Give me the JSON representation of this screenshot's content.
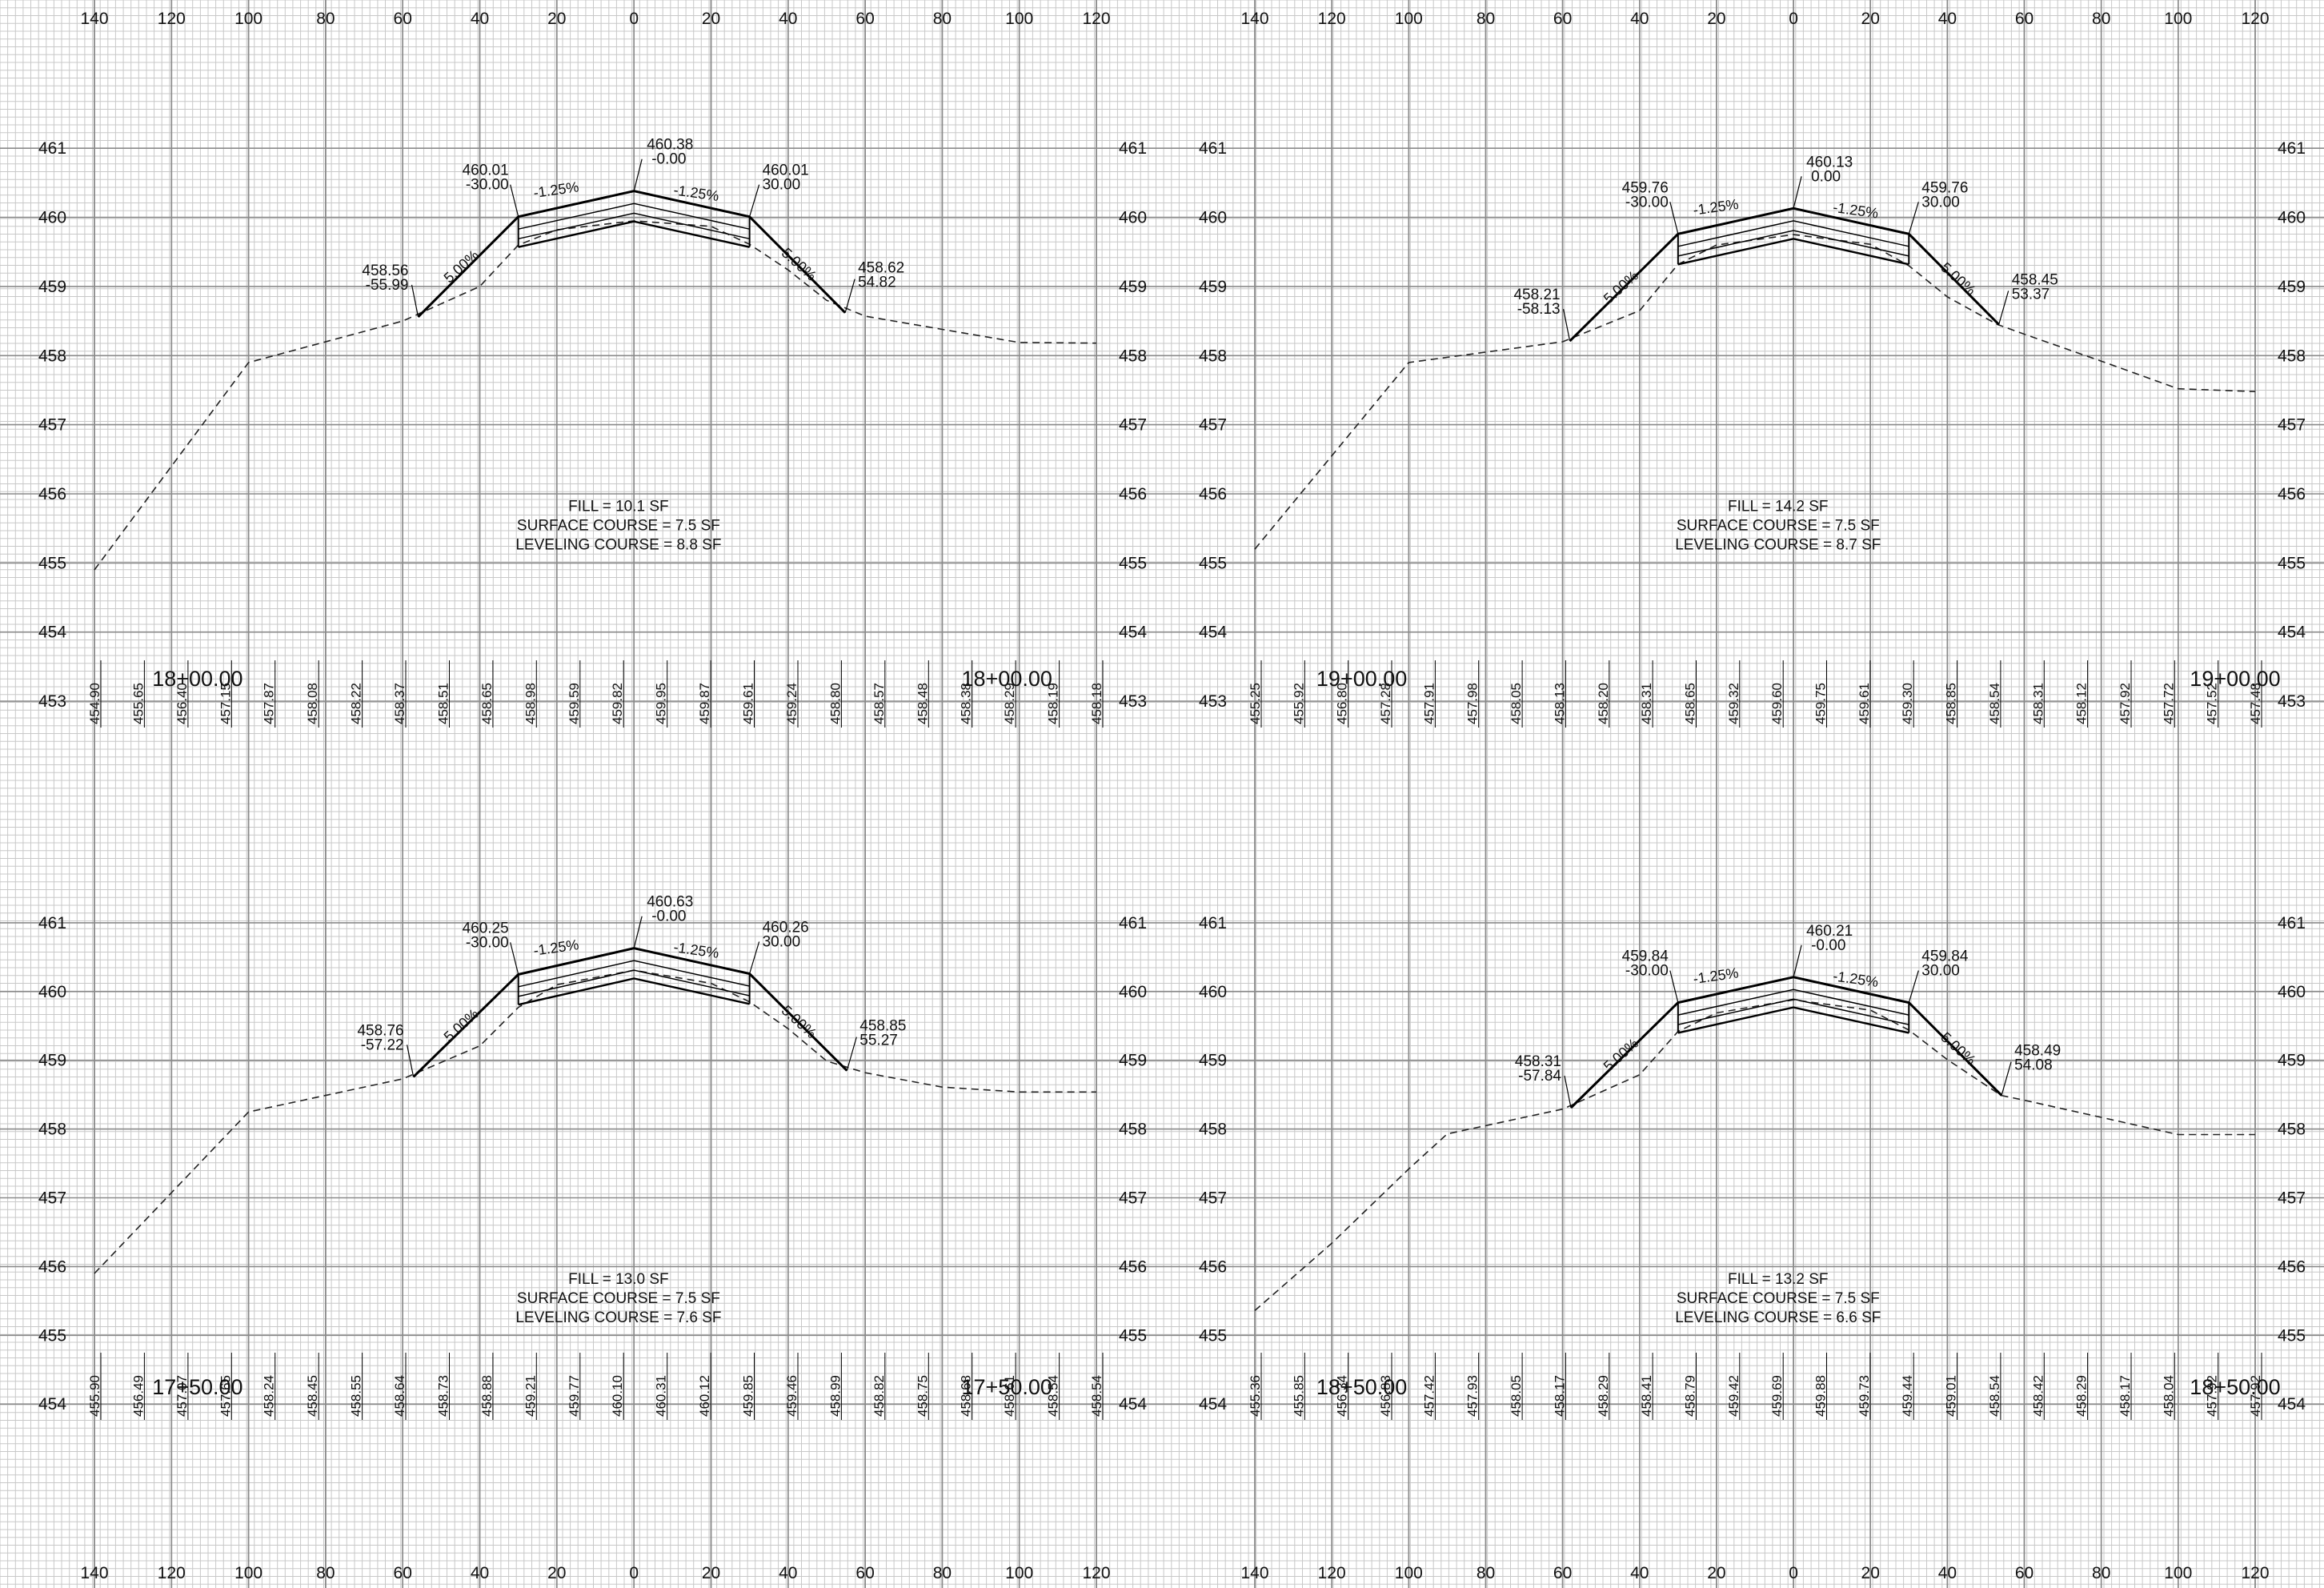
{
  "offset_labels": [
    "140",
    "120",
    "100",
    "80",
    "60",
    "40",
    "20",
    "0",
    "20",
    "40",
    "60",
    "80",
    "100",
    "120"
  ],
  "panels": [
    {
      "id": "sta-18+00",
      "station": "18+00.00",
      "elev_labels": [
        "461",
        "460",
        "459",
        "458",
        "457",
        "456",
        "455",
        "454",
        "453"
      ],
      "elev_top": 461.5,
      "elev_bottom": 452.7,
      "crown": {
        "elev": "460.38",
        "offset": "-0.00"
      },
      "left_shoulder": {
        "elev": "460.01",
        "offset": "-30.00"
      },
      "right_shoulder": {
        "elev": "460.01",
        "offset": "30.00"
      },
      "left_toe": {
        "elev": "458.56",
        "offset": "-55.99"
      },
      "right_toe": {
        "elev": "458.62",
        "offset": "54.82"
      },
      "cross_slope_left": "-1.25%",
      "cross_slope_right": "-1.25%",
      "side_slope_left": "5.00%",
      "side_slope_right": "5.00%",
      "fill": "FILL = 10.1 SF",
      "surface": "SURFACE COURSE = 7.5 SF",
      "leveling": "LEVELING COURSE = 8.8 SF",
      "existing": [
        [
          -140,
          454.9
        ],
        [
          -100,
          457.9
        ],
        [
          -60,
          458.5
        ],
        [
          -40,
          459.0
        ],
        [
          -30,
          459.6
        ],
        [
          -20,
          459.82
        ],
        [
          0,
          459.95
        ],
        [
          20,
          459.87
        ],
        [
          30,
          459.61
        ],
        [
          40,
          459.24
        ],
        [
          50,
          458.8
        ],
        [
          60,
          458.57
        ],
        [
          80,
          458.38
        ],
        [
          100,
          458.19
        ],
        [
          120,
          458.18
        ]
      ],
      "bottom_values": [
        "454.90",
        "455.65",
        "456.40",
        "457.15",
        "457.87",
        "458.08",
        "458.22",
        "458.37",
        "458.51",
        "458.65",
        "458.98",
        "459.59",
        "459.82",
        "459.95",
        "459.87",
        "459.61",
        "459.24",
        "458.80",
        "458.57",
        "458.48",
        "458.38",
        "458.29",
        "458.19",
        "458.18"
      ]
    },
    {
      "id": "sta-19+00",
      "station": "19+00.00",
      "elev_labels": [
        "461",
        "460",
        "459",
        "458",
        "457",
        "456",
        "455",
        "454",
        "453"
      ],
      "elev_top": 461.5,
      "elev_bottom": 452.7,
      "crown": {
        "elev": "460.13",
        "offset": "0.00"
      },
      "left_shoulder": {
        "elev": "459.76",
        "offset": "-30.00"
      },
      "right_shoulder": {
        "elev": "459.76",
        "offset": "30.00"
      },
      "left_toe": {
        "elev": "458.21",
        "offset": "-58.13"
      },
      "right_toe": {
        "elev": "458.45",
        "offset": "53.37"
      },
      "cross_slope_left": "-1.25%",
      "cross_slope_right": "-1.25%",
      "side_slope_left": "5.00%",
      "side_slope_right": "5.00%",
      "fill": "FILL = 14.2 SF",
      "surface": "SURFACE COURSE = 7.5 SF",
      "leveling": "LEVELING COURSE = 8.7 SF",
      "existing": [
        [
          -140,
          455.2
        ],
        [
          -100,
          457.9
        ],
        [
          -60,
          458.2
        ],
        [
          -40,
          458.65
        ],
        [
          -30,
          459.32
        ],
        [
          -20,
          459.6
        ],
        [
          0,
          459.75
        ],
        [
          20,
          459.61
        ],
        [
          30,
          459.3
        ],
        [
          40,
          458.85
        ],
        [
          53,
          458.45
        ],
        [
          60,
          458.31
        ],
        [
          80,
          457.92
        ],
        [
          100,
          457.52
        ],
        [
          120,
          457.48
        ]
      ],
      "bottom_values": [
        "455.25",
        "455.92",
        "456.80",
        "457.28",
        "457.91",
        "457.98",
        "458.05",
        "458.13",
        "458.20",
        "458.31",
        "458.65",
        "459.32",
        "459.60",
        "459.75",
        "459.61",
        "459.30",
        "458.85",
        "458.54",
        "458.31",
        "458.12",
        "457.92",
        "457.72",
        "457.52",
        "457.48"
      ]
    },
    {
      "id": "sta-17+50",
      "station": "17+50.00",
      "elev_labels": [
        "461",
        "460",
        "459",
        "458",
        "457",
        "456",
        "455",
        "454"
      ],
      "elev_top": 461.5,
      "elev_bottom": 453.7,
      "crown": {
        "elev": "460.63",
        "offset": "-0.00"
      },
      "left_shoulder": {
        "elev": "460.25",
        "offset": "-30.00"
      },
      "right_shoulder": {
        "elev": "460.26",
        "offset": "30.00"
      },
      "left_toe": {
        "elev": "458.76",
        "offset": "-57.22"
      },
      "right_toe": {
        "elev": "458.85",
        "offset": "55.27"
      },
      "cross_slope_left": "-1.25%",
      "cross_slope_right": "-1.25%",
      "side_slope_left": "5.00%",
      "side_slope_right": "5.00%",
      "fill": "FILL = 13.0 SF",
      "surface": "SURFACE COURSE = 7.5 SF",
      "leveling": "LEVELING COURSE = 7.6 SF",
      "existing": [
        [
          -140,
          455.9
        ],
        [
          -100,
          458.25
        ],
        [
          -60,
          458.73
        ],
        [
          -40,
          459.21
        ],
        [
          -30,
          459.77
        ],
        [
          -20,
          460.1
        ],
        [
          0,
          460.31
        ],
        [
          20,
          460.12
        ],
        [
          30,
          459.85
        ],
        [
          40,
          459.46
        ],
        [
          50,
          458.99
        ],
        [
          60,
          458.82
        ],
        [
          80,
          458.61
        ],
        [
          100,
          458.54
        ],
        [
          120,
          458.54
        ]
      ],
      "bottom_values": [
        "455.90",
        "456.49",
        "457.07",
        "457.65",
        "458.24",
        "458.45",
        "458.55",
        "458.64",
        "458.73",
        "458.88",
        "459.21",
        "459.77",
        "460.10",
        "460.31",
        "460.12",
        "459.85",
        "459.46",
        "458.99",
        "458.82",
        "458.75",
        "458.68",
        "458.61",
        "458.54",
        "458.54"
      ]
    },
    {
      "id": "sta-18+50",
      "station": "18+50.00",
      "elev_labels": [
        "461",
        "460",
        "459",
        "458",
        "457",
        "456",
        "455",
        "454"
      ],
      "elev_top": 461.5,
      "elev_bottom": 453.7,
      "crown": {
        "elev": "460.21",
        "offset": "-0.00"
      },
      "left_shoulder": {
        "elev": "459.84",
        "offset": "-30.00"
      },
      "right_shoulder": {
        "elev": "459.84",
        "offset": "30.00"
      },
      "left_toe": {
        "elev": "458.31",
        "offset": "-57.84"
      },
      "right_toe": {
        "elev": "458.49",
        "offset": "54.08"
      },
      "cross_slope_left": "-1.25%",
      "cross_slope_right": "-1.25%",
      "side_slope_left": "5.00%",
      "side_slope_right": "5.00%",
      "fill": "FILL = 13.2 SF",
      "surface": "SURFACE COURSE = 7.5 SF",
      "leveling": "LEVELING COURSE = 6.6 SF",
      "existing": [
        [
          -140,
          455.36
        ],
        [
          -120,
          456.34
        ],
        [
          -100,
          457.42
        ],
        [
          -90,
          457.93
        ],
        [
          -70,
          458.17
        ],
        [
          -60,
          458.29
        ],
        [
          -40,
          458.79
        ],
        [
          -30,
          459.42
        ],
        [
          -20,
          459.69
        ],
        [
          0,
          459.88
        ],
        [
          20,
          459.73
        ],
        [
          30,
          459.44
        ],
        [
          40,
          459.01
        ],
        [
          54,
          458.49
        ],
        [
          60,
          458.42
        ],
        [
          80,
          458.17
        ],
        [
          100,
          457.92
        ],
        [
          120,
          457.92
        ]
      ],
      "bottom_values": [
        "455.36",
        "455.85",
        "456.34",
        "456.83",
        "457.42",
        "457.93",
        "458.05",
        "458.17",
        "458.29",
        "458.41",
        "458.79",
        "459.42",
        "459.69",
        "459.88",
        "459.73",
        "459.44",
        "459.01",
        "458.54",
        "458.42",
        "458.29",
        "458.17",
        "458.04",
        "457.92",
        "457.92"
      ]
    }
  ]
}
